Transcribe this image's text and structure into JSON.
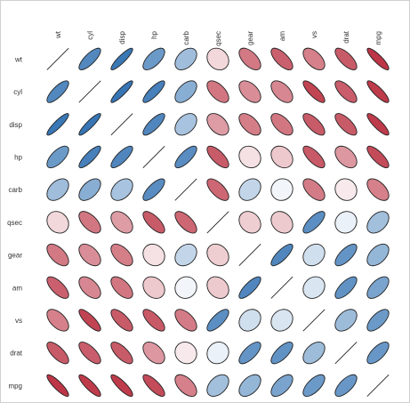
{
  "chart_data": {
    "type": "correlation-ellipse-matrix",
    "variables": [
      "wt",
      "cyl",
      "disp",
      "hp",
      "carb",
      "qsec",
      "gear",
      "am",
      "vs",
      "drat",
      "mpg"
    ],
    "colors": {
      "negative": "#b2182b",
      "neutral": "#ffffff",
      "positive": "#2166ac"
    },
    "matrix": [
      [
        1.0,
        0.78,
        0.89,
        0.66,
        0.43,
        -0.17,
        -0.58,
        -0.69,
        -0.55,
        -0.71,
        -0.87
      ],
      [
        0.78,
        1.0,
        0.9,
        0.83,
        0.53,
        -0.59,
        -0.49,
        -0.52,
        -0.81,
        -0.7,
        -0.85
      ],
      [
        0.89,
        0.9,
        1.0,
        0.79,
        0.39,
        -0.43,
        -0.56,
        -0.59,
        -0.71,
        -0.71,
        -0.85
      ],
      [
        0.66,
        0.83,
        0.79,
        1.0,
        0.75,
        -0.71,
        -0.13,
        -0.24,
        -0.72,
        -0.45,
        -0.78
      ],
      [
        0.43,
        0.53,
        0.39,
        0.75,
        1.0,
        -0.66,
        0.27,
        0.06,
        -0.57,
        -0.09,
        -0.55
      ],
      [
        -0.17,
        -0.59,
        -0.43,
        -0.71,
        -0.66,
        1.0,
        -0.21,
        -0.23,
        0.74,
        0.09,
        0.42
      ],
      [
        -0.58,
        -0.49,
        -0.56,
        -0.13,
        0.27,
        -0.21,
        1.0,
        0.79,
        0.21,
        0.7,
        0.48
      ],
      [
        -0.69,
        -0.52,
        -0.59,
        -0.24,
        0.06,
        -0.23,
        0.79,
        1.0,
        0.17,
        0.71,
        0.6
      ],
      [
        -0.55,
        -0.81,
        -0.71,
        -0.72,
        -0.57,
        0.74,
        0.21,
        0.17,
        1.0,
        0.44,
        0.66
      ],
      [
        -0.71,
        -0.7,
        -0.71,
        -0.45,
        -0.09,
        0.09,
        0.7,
        0.71,
        0.44,
        1.0,
        0.68
      ],
      [
        -0.87,
        -0.85,
        -0.85,
        -0.78,
        -0.55,
        0.42,
        0.48,
        0.6,
        0.66,
        0.68,
        1.0
      ]
    ]
  }
}
